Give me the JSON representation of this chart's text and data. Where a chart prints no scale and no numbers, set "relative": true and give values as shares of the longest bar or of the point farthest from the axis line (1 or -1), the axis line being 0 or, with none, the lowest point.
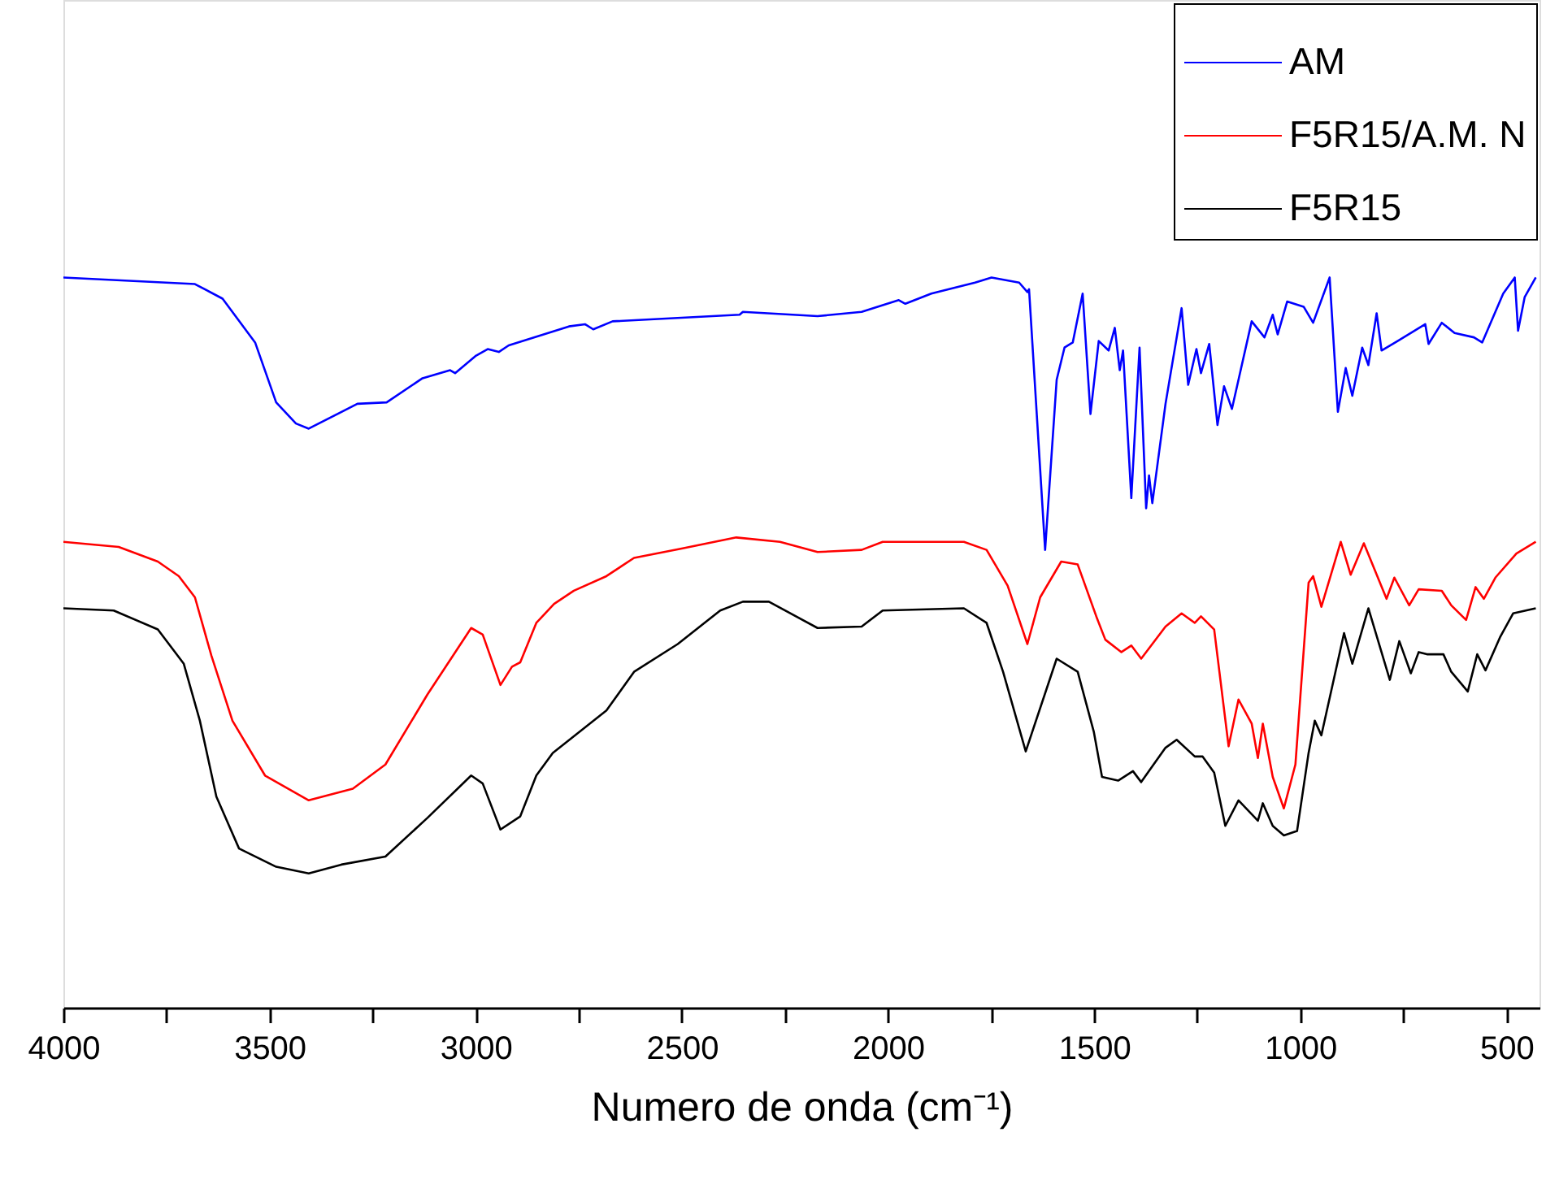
{
  "chart_data": {
    "type": "line",
    "relative": true,
    "xlabel": "Numero de onda (cm⁻¹)",
    "xlim": [
      4000,
      420
    ],
    "xticks": [
      4000,
      {
        "value": 3750,
        "label": null
      },
      3500,
      {
        "value": 3250,
        "label": null
      },
      3000,
      {
        "value": 2750,
        "label": null
      },
      2500,
      {
        "value": 2250,
        "label": null
      },
      2000,
      {
        "value": 1750,
        "label": null
      },
      1500,
      {
        "value": 1250,
        "label": null
      },
      1000,
      {
        "value": 750,
        "label": null
      },
      500
    ],
    "grid": false,
    "legend": "top right",
    "tick_labels": "x",
    "series": [
      {
        "name": "AM",
        "color": "#0000ff",
        "x": [
          4000,
          3681,
          3614,
          3535,
          3484,
          3436,
          3405,
          3287,
          3216,
          3129,
          3062,
          3050,
          2999,
          2971,
          2944,
          2920,
          2774,
          2735,
          2715,
          2668,
          2360,
          2352,
          2171,
          2064,
          1974,
          1958,
          1895,
          1789,
          1749,
          1682,
          1662,
          1658,
          1619,
          1591,
          1572,
          1552,
          1528,
          1509,
          1489,
          1465,
          1450,
          1438,
          1430,
          1410,
          1390,
          1374,
          1367,
          1359,
          1327,
          1288,
          1272,
          1252,
          1241,
          1221,
          1201,
          1185,
          1166,
          1118,
          1087,
          1067,
          1055,
          1032,
          992,
          969,
          929,
          909,
          890,
          874,
          850,
          835,
          815,
          803,
          764,
          697,
          689,
          657,
          626,
          579,
          559,
          508,
          480,
          472,
          456,
          429
        ],
        "values": [
          1.0,
          0.991,
          0.971,
          0.911,
          0.829,
          0.8,
          0.793,
          0.827,
          0.829,
          0.862,
          0.873,
          0.869,
          0.893,
          0.902,
          0.898,
          0.907,
          0.933,
          0.936,
          0.929,
          0.94,
          0.949,
          0.953,
          0.947,
          0.953,
          0.969,
          0.964,
          0.978,
          0.993,
          1.0,
          0.993,
          0.98,
          0.984,
          0.627,
          0.86,
          0.904,
          0.911,
          0.978,
          0.813,
          0.913,
          0.9,
          0.931,
          0.873,
          0.9,
          0.698,
          0.904,
          0.684,
          0.729,
          0.691,
          0.827,
          0.958,
          0.853,
          0.902,
          0.869,
          0.909,
          0.798,
          0.851,
          0.82,
          0.94,
          0.918,
          0.949,
          0.922,
          0.967,
          0.96,
          0.938,
          1.0,
          0.816,
          0.876,
          0.838,
          0.904,
          0.88,
          0.951,
          0.9,
          0.913,
          0.936,
          0.909,
          0.938,
          0.924,
          0.918,
          0.911,
          0.978,
          1.0,
          0.927,
          0.973,
          1.0
        ]
      },
      {
        "name": "F5R15/A.M. N",
        "color": "#ff0000",
        "x": [
          4000,
          3866,
          3771,
          3720,
          3681,
          3641,
          3590,
          3511,
          3405,
          3298,
          3219,
          3117,
          3011,
          2983,
          2940,
          2912,
          2892,
          2853,
          2810,
          2762,
          2683,
          2616,
          2498,
          2368,
          2262,
          2171,
          2064,
          2013,
          1816,
          1761,
          1710,
          1662,
          1631,
          1580,
          1540,
          1493,
          1473,
          1434,
          1410,
          1386,
          1327,
          1288,
          1256,
          1241,
          1209,
          1174,
          1150,
          1118,
          1103,
          1091,
          1067,
          1040,
          1012,
          980,
          969,
          949,
          902,
          878,
          846,
          791,
          772,
          736,
          713,
          657,
          634,
          598,
          575,
          555,
          527,
          476,
          429
        ],
        "values": [
          0.638,
          0.631,
          0.611,
          0.591,
          0.562,
          0.482,
          0.393,
          0.318,
          0.284,
          0.3,
          0.333,
          0.429,
          0.52,
          0.511,
          0.442,
          0.467,
          0.473,
          0.527,
          0.553,
          0.571,
          0.591,
          0.616,
          0.629,
          0.644,
          0.638,
          0.624,
          0.627,
          0.638,
          0.638,
          0.627,
          0.578,
          0.498,
          0.562,
          0.611,
          0.607,
          0.533,
          0.504,
          0.487,
          0.496,
          0.478,
          0.522,
          0.54,
          0.527,
          0.536,
          0.518,
          0.358,
          0.422,
          0.389,
          0.342,
          0.389,
          0.316,
          0.273,
          0.333,
          0.582,
          0.591,
          0.549,
          0.638,
          0.593,
          0.636,
          0.56,
          0.589,
          0.551,
          0.573,
          0.571,
          0.551,
          0.531,
          0.576,
          0.56,
          0.589,
          0.622,
          0.638
        ]
      },
      {
        "name": "F5R15",
        "color": "#000000",
        "x": [
          4000,
          3878,
          3771,
          3708,
          3669,
          3629,
          3574,
          3484,
          3405,
          3326,
          3219,
          3117,
          3011,
          2983,
          2940,
          2892,
          2853,
          2813,
          2683,
          2616,
          2510,
          2407,
          2352,
          2289,
          2171,
          2064,
          2013,
          1816,
          1761,
          1721,
          1666,
          1591,
          1540,
          1501,
          1481,
          1442,
          1406,
          1386,
          1327,
          1300,
          1256,
          1237,
          1209,
          1182,
          1150,
          1103,
          1091,
          1067,
          1040,
          1008,
          980,
          965,
          949,
          894,
          874,
          835,
          783,
          760,
          732,
          713,
          693,
          653,
          634,
          594,
          571,
          551,
          516,
          484,
          429
        ],
        "values": [
          0.547,
          0.544,
          0.518,
          0.471,
          0.393,
          0.289,
          0.218,
          0.193,
          0.184,
          0.196,
          0.207,
          0.26,
          0.318,
          0.307,
          0.244,
          0.262,
          0.318,
          0.349,
          0.407,
          0.46,
          0.498,
          0.544,
          0.556,
          0.556,
          0.52,
          0.522,
          0.544,
          0.547,
          0.527,
          0.46,
          0.351,
          0.478,
          0.46,
          0.378,
          0.316,
          0.311,
          0.324,
          0.309,
          0.356,
          0.367,
          0.344,
          0.344,
          0.322,
          0.249,
          0.284,
          0.256,
          0.28,
          0.249,
          0.236,
          0.242,
          0.349,
          0.393,
          0.373,
          0.513,
          0.471,
          0.547,
          0.449,
          0.502,
          0.458,
          0.487,
          0.484,
          0.484,
          0.46,
          0.433,
          0.484,
          0.462,
          0.507,
          0.54,
          0.547
        ]
      }
    ]
  }
}
